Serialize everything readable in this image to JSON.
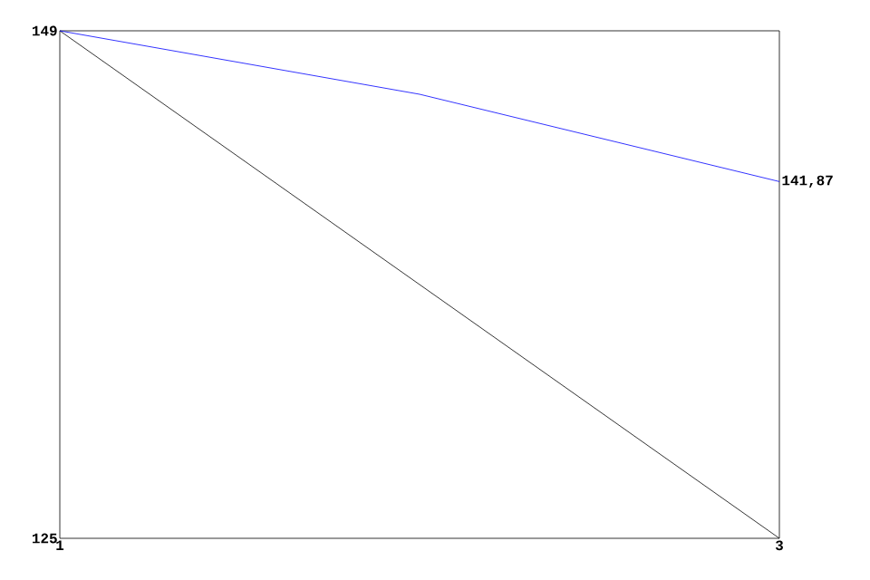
{
  "chart_data": {
    "type": "line",
    "x": [
      1,
      2,
      3
    ],
    "xlim": [
      1,
      3
    ],
    "xticks": [
      1,
      3
    ],
    "ylim": [
      125,
      149
    ],
    "yticks": [
      125,
      149
    ],
    "marker": "none",
    "line_style": "solid",
    "series": [
      {
        "color": "#000000",
        "values": [
          149,
          137,
          125
        ]
      },
      {
        "color": "#0000ff",
        "values": [
          149,
          146,
          141.87
        ],
        "value_labels": [
          null,
          null,
          "141,87"
        ]
      }
    ]
  }
}
